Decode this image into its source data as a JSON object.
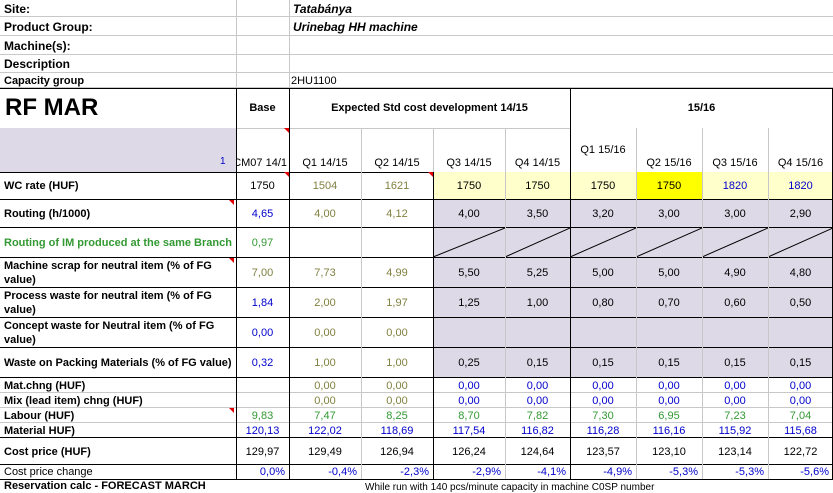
{
  "info": {
    "site_label": "Site:",
    "site_value": "Tatabánya",
    "group_label": "Product Group:",
    "group_value": "Urinebag HH machine",
    "machines_label": "Machine(s):",
    "description_label": "Description",
    "capacity_label": "Capacity group",
    "capacity_value": "2HU1100"
  },
  "title": "RF MAR",
  "headers": {
    "base": "Base",
    "expected": "Expected Std cost development 14/15",
    "year": "15/16",
    "row_marker": "1",
    "periods": [
      "CM07 14/1",
      "Q1 14/15",
      "Q2 14/15",
      "Q3 14/15",
      "Q4 14/15",
      "Q1 15/16",
      "Q2 15/16",
      "Q3 15/16",
      "Q4 15/16"
    ]
  },
  "rows": [
    {
      "label": "WC rate (HUF)",
      "values": [
        "1750",
        "1504",
        "1621",
        "1750",
        "1750",
        "1750",
        "1750",
        "1820",
        "1820"
      ]
    },
    {
      "label": "Routing (h/1000)",
      "values": [
        "4,65",
        "4,00",
        "4,12",
        "4,00",
        "3,50",
        "3,20",
        "3,00",
        "3,00",
        "2,90"
      ]
    },
    {
      "label": "Routing of IM produced at the same Branch",
      "values": [
        "0,97"
      ]
    },
    {
      "label": "Machine scrap for neutral item (% of FG value)",
      "values": [
        "7,00",
        "7,73",
        "4,99",
        "5,50",
        "5,25",
        "5,00",
        "5,00",
        "4,90",
        "4,80"
      ]
    },
    {
      "label": "Process waste for neutral item (% of FG value)",
      "values": [
        "1,84",
        "2,00",
        "1,97",
        "1,25",
        "1,00",
        "0,80",
        "0,70",
        "0,60",
        "0,50"
      ]
    },
    {
      "label": "Concept waste for Neutral item (% of FG value)",
      "values": [
        "0,00",
        "0,00",
        "0,00"
      ]
    },
    {
      "label": "Waste on Packing Materials (% of FG value)",
      "values": [
        "0,32",
        "1,00",
        "1,00",
        "0,25",
        "0,15",
        "0,15",
        "0,15",
        "0,15",
        "0,15"
      ]
    },
    {
      "label": "Mat.chng (HUF)",
      "values": [
        "",
        "0,00",
        "0,00",
        "0,00",
        "0,00",
        "0,00",
        "0,00",
        "0,00",
        "0,00"
      ]
    },
    {
      "label": "Mix (lead item) chng (HUF)",
      "values": [
        "",
        "0,00",
        "0,00",
        "0,00",
        "0,00",
        "0,00",
        "0,00",
        "0,00",
        "0,00"
      ]
    },
    {
      "label": "Labour (HUF)",
      "values": [
        "9,83",
        "7,47",
        "8,25",
        "8,70",
        "7,82",
        "7,30",
        "6,95",
        "7,23",
        "7,04"
      ]
    },
    {
      "label": "Material HUF)",
      "values": [
        "120,13",
        "122,02",
        "118,69",
        "117,54",
        "116,82",
        "116,28",
        "116,16",
        "115,92",
        "115,68"
      ]
    },
    {
      "label": "Cost price (HUF)",
      "values": [
        "129,97",
        "129,49",
        "126,94",
        "126,24",
        "124,64",
        "123,57",
        "123,10",
        "123,14",
        "122,72"
      ]
    },
    {
      "label": "Cost price change",
      "values": [
        "0,0%",
        "-0,4%",
        "-2,3%",
        "-2,9%",
        "-4,1%",
        "-4,9%",
        "-5,3%",
        "-5,3%",
        "-5,6%"
      ]
    }
  ],
  "footer": {
    "reservation_label": "Reservation calc - FORECAST MARCH",
    "note": "While run with 140 pcs/minute capacity in machine C0SP number"
  }
}
